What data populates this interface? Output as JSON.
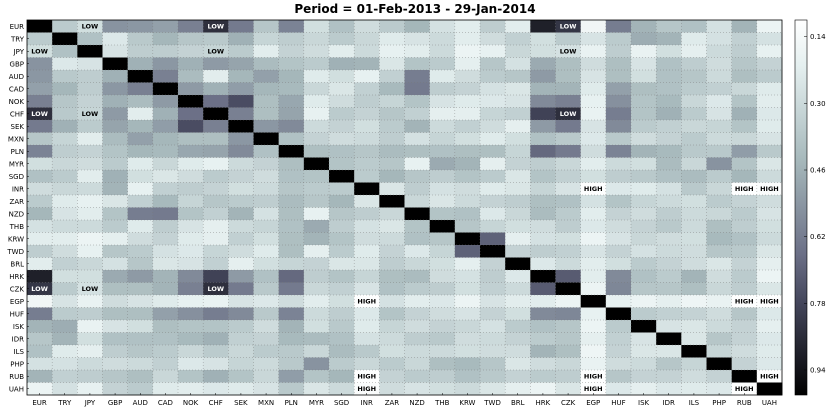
{
  "chart_data": {
    "type": "heatmap",
    "title": "Period = 01-Feb-2013 - 29-Jan-2014",
    "currencies": [
      "EUR",
      "TRY",
      "JPY",
      "GBP",
      "AUD",
      "CAD",
      "NOK",
      "CHF",
      "SEK",
      "MXN",
      "PLN",
      "MYR",
      "SGD",
      "INR",
      "ZAR",
      "NZD",
      "THB",
      "KRW",
      "TWD",
      "BRL",
      "HRK",
      "CZK",
      "EGP",
      "HUF",
      "ISK",
      "IDR",
      "ILS",
      "PHP",
      "RUB",
      "UAH"
    ],
    "colorbar": {
      "ticks": [
        "0.14",
        "0.30",
        "0.46",
        "0.62",
        "0.78",
        "0.94"
      ],
      "tick_values": [
        0.14,
        0.3,
        0.46,
        0.62,
        0.78,
        0.94
      ],
      "range": [
        0.1,
        1.0
      ],
      "colormap": "bone-reversed"
    },
    "grid": true,
    "diagonal_value": 1.0,
    "values": [
      [
        1.0,
        0.36,
        0.28,
        0.55,
        0.54,
        0.51,
        0.61,
        0.85,
        0.63,
        0.38,
        0.6,
        0.28,
        0.4,
        0.29,
        0.36,
        0.44,
        0.27,
        0.22,
        0.35,
        0.22,
        0.9,
        0.83,
        0.16,
        0.62,
        0.45,
        0.38,
        0.4,
        0.27,
        0.45,
        0.18
      ],
      [
        0.36,
        1.0,
        0.4,
        0.24,
        0.37,
        0.44,
        0.38,
        0.37,
        0.46,
        0.32,
        0.35,
        0.31,
        0.36,
        0.31,
        0.23,
        0.26,
        0.3,
        0.22,
        0.29,
        0.34,
        0.28,
        0.36,
        0.26,
        0.36,
        0.47,
        0.45,
        0.23,
        0.27,
        0.34,
        0.27
      ],
      [
        0.28,
        0.4,
        1.0,
        0.26,
        0.35,
        0.35,
        0.33,
        0.32,
        0.36,
        0.22,
        0.33,
        0.29,
        0.22,
        0.3,
        0.2,
        0.22,
        0.3,
        0.18,
        0.2,
        0.31,
        0.28,
        0.27,
        0.19,
        0.35,
        0.19,
        0.28,
        0.21,
        0.3,
        0.35,
        0.2
      ],
      [
        0.55,
        0.24,
        0.26,
        1.0,
        0.46,
        0.54,
        0.46,
        0.53,
        0.5,
        0.42,
        0.39,
        0.36,
        0.46,
        0.45,
        0.25,
        0.39,
        0.36,
        0.21,
        0.38,
        0.27,
        0.48,
        0.41,
        0.29,
        0.41,
        0.26,
        0.4,
        0.35,
        0.29,
        0.38,
        0.33
      ],
      [
        0.54,
        0.37,
        0.35,
        0.46,
        1.0,
        0.61,
        0.42,
        0.22,
        0.44,
        0.51,
        0.44,
        0.23,
        0.28,
        0.2,
        0.34,
        0.62,
        0.23,
        0.29,
        0.36,
        0.38,
        0.53,
        0.41,
        0.26,
        0.41,
        0.28,
        0.4,
        0.38,
        0.3,
        0.41,
        0.36
      ],
      [
        0.51,
        0.44,
        0.35,
        0.54,
        0.61,
        1.0,
        0.53,
        0.46,
        0.52,
        0.44,
        0.43,
        0.31,
        0.25,
        0.34,
        0.43,
        0.63,
        0.35,
        0.33,
        0.27,
        0.25,
        0.45,
        0.45,
        0.23,
        0.51,
        0.41,
        0.4,
        0.36,
        0.34,
        0.31,
        0.23
      ],
      [
        0.61,
        0.38,
        0.33,
        0.46,
        0.42,
        0.53,
        1.0,
        0.66,
        0.76,
        0.41,
        0.49,
        0.23,
        0.29,
        0.35,
        0.32,
        0.39,
        0.26,
        0.23,
        0.24,
        0.26,
        0.58,
        0.61,
        0.2,
        0.56,
        0.39,
        0.43,
        0.31,
        0.24,
        0.39,
        0.22
      ],
      [
        0.85,
        0.37,
        0.32,
        0.53,
        0.22,
        0.46,
        0.66,
        1.0,
        0.61,
        0.41,
        0.5,
        0.2,
        0.36,
        0.33,
        0.38,
        0.34,
        0.21,
        0.21,
        0.32,
        0.34,
        0.79,
        0.85,
        0.19,
        0.62,
        0.39,
        0.46,
        0.36,
        0.26,
        0.46,
        0.24
      ],
      [
        0.63,
        0.46,
        0.36,
        0.5,
        0.44,
        0.52,
        0.76,
        0.61,
        1.0,
        0.54,
        0.58,
        0.3,
        0.33,
        0.28,
        0.36,
        0.45,
        0.3,
        0.34,
        0.29,
        0.21,
        0.53,
        0.63,
        0.26,
        0.58,
        0.36,
        0.34,
        0.31,
        0.32,
        0.39,
        0.23
      ],
      [
        0.38,
        0.32,
        0.22,
        0.42,
        0.51,
        0.44,
        0.41,
        0.41,
        0.54,
        1.0,
        0.4,
        0.33,
        0.29,
        0.3,
        0.35,
        0.27,
        0.32,
        0.28,
        0.23,
        0.28,
        0.4,
        0.37,
        0.24,
        0.37,
        0.29,
        0.33,
        0.36,
        0.3,
        0.31,
        0.26
      ],
      [
        0.6,
        0.35,
        0.33,
        0.39,
        0.44,
        0.43,
        0.49,
        0.5,
        0.58,
        0.4,
        1.0,
        0.41,
        0.4,
        0.38,
        0.42,
        0.41,
        0.4,
        0.41,
        0.41,
        0.32,
        0.68,
        0.63,
        0.29,
        0.6,
        0.45,
        0.43,
        0.37,
        0.37,
        0.52,
        0.37
      ],
      [
        0.28,
        0.31,
        0.29,
        0.36,
        0.23,
        0.31,
        0.23,
        0.2,
        0.3,
        0.33,
        0.41,
        1.0,
        0.39,
        0.36,
        0.38,
        0.2,
        0.48,
        0.45,
        0.21,
        0.33,
        0.35,
        0.31,
        0.22,
        0.3,
        0.28,
        0.42,
        0.31,
        0.55,
        0.39,
        0.25
      ],
      [
        0.4,
        0.36,
        0.22,
        0.46,
        0.28,
        0.25,
        0.29,
        0.36,
        0.33,
        0.29,
        0.4,
        0.39,
        1.0,
        0.36,
        0.44,
        0.38,
        0.35,
        0.39,
        0.36,
        0.25,
        0.39,
        0.34,
        0.28,
        0.35,
        0.37,
        0.4,
        0.42,
        0.36,
        0.44,
        0.3
      ],
      [
        0.29,
        0.31,
        0.3,
        0.45,
        0.2,
        0.34,
        0.35,
        0.33,
        0.28,
        0.3,
        0.38,
        0.36,
        0.36,
        1.0,
        0.25,
        0.35,
        0.27,
        0.29,
        0.23,
        0.25,
        0.32,
        0.26,
        0.11,
        0.24,
        0.23,
        0.27,
        0.37,
        0.31,
        0.11,
        0.12
      ],
      [
        0.36,
        0.23,
        0.2,
        0.25,
        0.34,
        0.43,
        0.32,
        0.38,
        0.36,
        0.35,
        0.42,
        0.38,
        0.44,
        0.25,
        1.0,
        0.31,
        0.25,
        0.3,
        0.33,
        0.35,
        0.41,
        0.4,
        0.27,
        0.39,
        0.32,
        0.3,
        0.28,
        0.36,
        0.33,
        0.29
      ],
      [
        0.44,
        0.26,
        0.22,
        0.39,
        0.62,
        0.63,
        0.39,
        0.34,
        0.45,
        0.27,
        0.41,
        0.2,
        0.38,
        0.35,
        0.31,
        1.0,
        0.39,
        0.4,
        0.24,
        0.31,
        0.42,
        0.36,
        0.22,
        0.33,
        0.29,
        0.35,
        0.3,
        0.31,
        0.36,
        0.26
      ],
      [
        0.27,
        0.3,
        0.3,
        0.36,
        0.23,
        0.35,
        0.26,
        0.21,
        0.3,
        0.32,
        0.4,
        0.48,
        0.35,
        0.27,
        0.25,
        0.39,
        1.0,
        0.38,
        0.32,
        0.28,
        0.29,
        0.35,
        0.24,
        0.29,
        0.33,
        0.37,
        0.3,
        0.41,
        0.35,
        0.28
      ],
      [
        0.22,
        0.22,
        0.18,
        0.21,
        0.29,
        0.33,
        0.23,
        0.21,
        0.34,
        0.28,
        0.41,
        0.45,
        0.39,
        0.29,
        0.3,
        0.4,
        0.38,
        1.0,
        0.7,
        0.21,
        0.27,
        0.28,
        0.18,
        0.26,
        0.31,
        0.29,
        0.28,
        0.43,
        0.4,
        0.3
      ],
      [
        0.35,
        0.29,
        0.2,
        0.38,
        0.36,
        0.27,
        0.24,
        0.32,
        0.29,
        0.23,
        0.41,
        0.21,
        0.36,
        0.23,
        0.33,
        0.24,
        0.32,
        0.7,
        1.0,
        0.33,
        0.35,
        0.34,
        0.26,
        0.33,
        0.27,
        0.3,
        0.29,
        0.38,
        0.37,
        0.25
      ],
      [
        0.22,
        0.34,
        0.31,
        0.27,
        0.38,
        0.25,
        0.26,
        0.34,
        0.21,
        0.28,
        0.32,
        0.33,
        0.25,
        0.25,
        0.35,
        0.31,
        0.28,
        0.21,
        0.33,
        1.0,
        0.24,
        0.3,
        0.22,
        0.28,
        0.36,
        0.33,
        0.29,
        0.25,
        0.33,
        0.21
      ],
      [
        0.9,
        0.28,
        0.28,
        0.48,
        0.53,
        0.45,
        0.58,
        0.79,
        0.53,
        0.4,
        0.68,
        0.35,
        0.39,
        0.32,
        0.41,
        0.42,
        0.29,
        0.27,
        0.35,
        0.24,
        1.0,
        0.72,
        0.22,
        0.58,
        0.4,
        0.36,
        0.45,
        0.29,
        0.36,
        0.18
      ],
      [
        0.83,
        0.36,
        0.27,
        0.41,
        0.41,
        0.45,
        0.61,
        0.85,
        0.63,
        0.37,
        0.63,
        0.31,
        0.34,
        0.26,
        0.4,
        0.36,
        0.35,
        0.28,
        0.34,
        0.3,
        0.72,
        1.0,
        0.18,
        0.59,
        0.38,
        0.38,
        0.41,
        0.31,
        0.35,
        0.25
      ],
      [
        0.16,
        0.26,
        0.19,
        0.29,
        0.26,
        0.23,
        0.2,
        0.19,
        0.26,
        0.24,
        0.29,
        0.22,
        0.28,
        0.11,
        0.27,
        0.22,
        0.24,
        0.18,
        0.26,
        0.22,
        0.22,
        0.18,
        1.0,
        0.2,
        0.18,
        0.21,
        0.17,
        0.19,
        0.11,
        0.11
      ],
      [
        0.62,
        0.36,
        0.35,
        0.41,
        0.41,
        0.51,
        0.56,
        0.62,
        0.58,
        0.37,
        0.6,
        0.3,
        0.35,
        0.24,
        0.39,
        0.33,
        0.29,
        0.26,
        0.33,
        0.28,
        0.58,
        0.59,
        0.2,
        1.0,
        0.36,
        0.34,
        0.33,
        0.29,
        0.38,
        0.24
      ],
      [
        0.45,
        0.47,
        0.19,
        0.26,
        0.28,
        0.41,
        0.39,
        0.39,
        0.36,
        0.29,
        0.45,
        0.28,
        0.37,
        0.23,
        0.32,
        0.29,
        0.33,
        0.31,
        0.27,
        0.36,
        0.4,
        0.38,
        0.18,
        0.36,
        1.0,
        0.26,
        0.25,
        0.3,
        0.33,
        0.21
      ],
      [
        0.38,
        0.45,
        0.28,
        0.4,
        0.4,
        0.4,
        0.43,
        0.46,
        0.34,
        0.33,
        0.43,
        0.42,
        0.4,
        0.27,
        0.3,
        0.35,
        0.37,
        0.29,
        0.3,
        0.33,
        0.36,
        0.38,
        0.21,
        0.34,
        0.26,
        1.0,
        0.25,
        0.38,
        0.33,
        0.24
      ],
      [
        0.4,
        0.23,
        0.21,
        0.35,
        0.38,
        0.36,
        0.31,
        0.36,
        0.31,
        0.36,
        0.37,
        0.31,
        0.42,
        0.37,
        0.28,
        0.3,
        0.3,
        0.28,
        0.29,
        0.29,
        0.45,
        0.41,
        0.17,
        0.33,
        0.25,
        0.25,
        1.0,
        0.32,
        0.29,
        0.23
      ],
      [
        0.27,
        0.27,
        0.3,
        0.29,
        0.3,
        0.34,
        0.24,
        0.26,
        0.32,
        0.3,
        0.37,
        0.55,
        0.36,
        0.31,
        0.36,
        0.31,
        0.41,
        0.43,
        0.38,
        0.25,
        0.29,
        0.31,
        0.19,
        0.29,
        0.3,
        0.38,
        0.32,
        1.0,
        0.33,
        0.24
      ],
      [
        0.45,
        0.34,
        0.35,
        0.38,
        0.41,
        0.31,
        0.39,
        0.46,
        0.39,
        0.31,
        0.52,
        0.39,
        0.44,
        0.11,
        0.33,
        0.36,
        0.35,
        0.4,
        0.37,
        0.33,
        0.36,
        0.35,
        0.11,
        0.38,
        0.33,
        0.33,
        0.29,
        0.33,
        1.0,
        0.11
      ],
      [
        0.18,
        0.27,
        0.2,
        0.33,
        0.36,
        0.23,
        0.22,
        0.24,
        0.23,
        0.26,
        0.37,
        0.25,
        0.3,
        0.12,
        0.29,
        0.26,
        0.28,
        0.3,
        0.25,
        0.21,
        0.18,
        0.25,
        0.11,
        0.24,
        0.21,
        0.24,
        0.23,
        0.24,
        0.11,
        1.0
      ]
    ],
    "annotations": [
      {
        "row": "EUR",
        "col": "JPY",
        "text": "LOW"
      },
      {
        "row": "EUR",
        "col": "CHF",
        "text": "LOW"
      },
      {
        "row": "EUR",
        "col": "CZK",
        "text": "LOW"
      },
      {
        "row": "JPY",
        "col": "EUR",
        "text": "LOW"
      },
      {
        "row": "JPY",
        "col": "CHF",
        "text": "LOW"
      },
      {
        "row": "JPY",
        "col": "CZK",
        "text": "LOW"
      },
      {
        "row": "CHF",
        "col": "EUR",
        "text": "LOW"
      },
      {
        "row": "CHF",
        "col": "JPY",
        "text": "LOW"
      },
      {
        "row": "CHF",
        "col": "CZK",
        "text": "LOW"
      },
      {
        "row": "INR",
        "col": "EGP",
        "text": "HIGH"
      },
      {
        "row": "INR",
        "col": "RUB",
        "text": "HIGH"
      },
      {
        "row": "INR",
        "col": "UAH",
        "text": "HIGH"
      },
      {
        "row": "CZK",
        "col": "EUR",
        "text": "LOW"
      },
      {
        "row": "CZK",
        "col": "JPY",
        "text": "LOW"
      },
      {
        "row": "CZK",
        "col": "CHF",
        "text": "LOW"
      },
      {
        "row": "EGP",
        "col": "INR",
        "text": "HIGH"
      },
      {
        "row": "EGP",
        "col": "RUB",
        "text": "HIGH"
      },
      {
        "row": "EGP",
        "col": "UAH",
        "text": "HIGH"
      },
      {
        "row": "RUB",
        "col": "INR",
        "text": "HIGH"
      },
      {
        "row": "RUB",
        "col": "EGP",
        "text": "HIGH"
      },
      {
        "row": "RUB",
        "col": "UAH",
        "text": "HIGH"
      },
      {
        "row": "UAH",
        "col": "INR",
        "text": "HIGH"
      },
      {
        "row": "UAH",
        "col": "EGP",
        "text": "HIGH"
      },
      {
        "row": "UAH",
        "col": "RUB",
        "text": "HIGH"
      }
    ]
  }
}
